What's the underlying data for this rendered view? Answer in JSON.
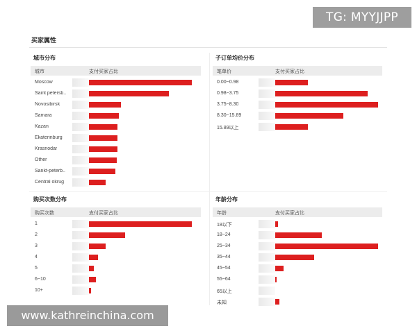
{
  "section_title": "买家属性",
  "watermarks": {
    "top_right": "TG: MYYJJPP",
    "bottom_left": "www.kathreinchina.com"
  },
  "colors": {
    "bar": "#dd1f1f",
    "header_bg": "#ececec"
  },
  "panels": {
    "city": {
      "title": "城市分布",
      "col1": "城市",
      "col2": "支付买家占比",
      "rows": [
        {
          "label": "Moscow",
          "value": 1.0
        },
        {
          "label": "Saint petersb..",
          "value": 0.78
        },
        {
          "label": "Novosibirsk",
          "value": 0.31
        },
        {
          "label": "Samara",
          "value": 0.29
        },
        {
          "label": "Kazan",
          "value": 0.28
        },
        {
          "label": "Ekaterinburg",
          "value": 0.28
        },
        {
          "label": "Krasnodar",
          "value": 0.28
        },
        {
          "label": "Other",
          "value": 0.27
        },
        {
          "label": "Sankt-peterb..",
          "value": 0.26
        },
        {
          "label": "Central okrug",
          "value": 0.16
        }
      ]
    },
    "price": {
      "title": "子订单均价分布",
      "col1": "笔单价",
      "col2": "支付买家占比",
      "rows": [
        {
          "label": "0.00~0.98",
          "value": 0.32
        },
        {
          "label": "0.98~3.75",
          "value": 0.9
        },
        {
          "label": "3.75~8.30",
          "value": 1.0
        },
        {
          "label": "8.30~15.89",
          "value": 0.66
        },
        {
          "label": "15.89以上",
          "value": 0.32
        }
      ]
    },
    "purchases": {
      "title": "购买次数分布",
      "col1": "购买次数",
      "col2": "支付买家占比",
      "rows": [
        {
          "label": "1",
          "value": 1.0
        },
        {
          "label": "2",
          "value": 0.35
        },
        {
          "label": "3",
          "value": 0.16
        },
        {
          "label": "4",
          "value": 0.09
        },
        {
          "label": "5",
          "value": 0.05
        },
        {
          "label": "6~10",
          "value": 0.07
        },
        {
          "label": "10+",
          "value": 0.02
        }
      ]
    },
    "age": {
      "title": "年龄分布",
      "col1": "年龄",
      "col2": "支付买家占比",
      "rows": [
        {
          "label": "18以下",
          "value": 0.03
        },
        {
          "label": "18~24",
          "value": 0.45
        },
        {
          "label": "25~34",
          "value": 1.0
        },
        {
          "label": "35~44",
          "value": 0.38
        },
        {
          "label": "45~54",
          "value": 0.08
        },
        {
          "label": "55~64",
          "value": 0.01
        },
        {
          "label": "65以上",
          "value": 0.0
        },
        {
          "label": "未知",
          "value": 0.04
        }
      ]
    }
  }
}
